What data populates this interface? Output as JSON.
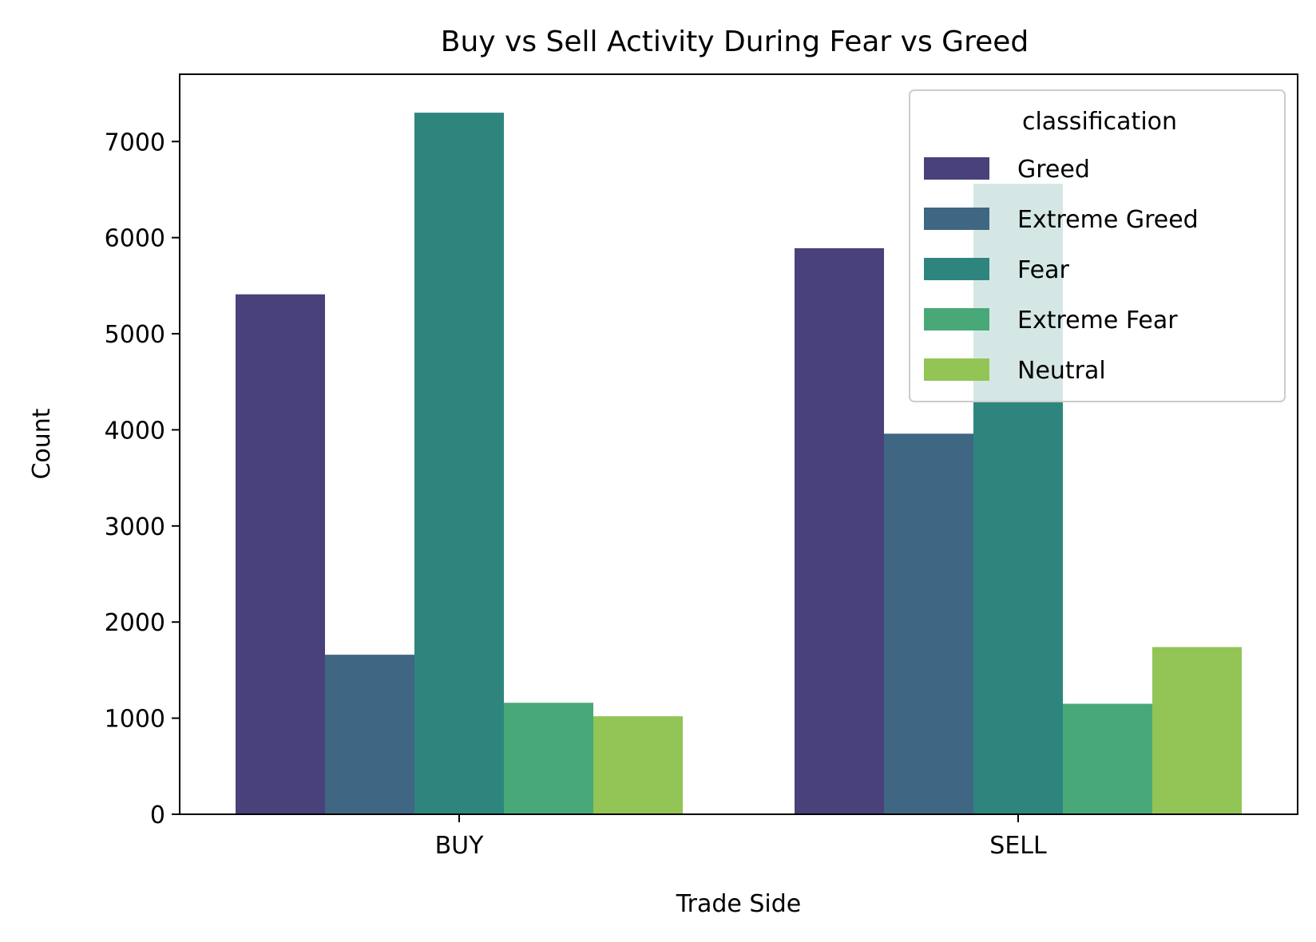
{
  "chart_data": {
    "type": "bar",
    "title": "Buy vs Sell Activity During Fear vs Greed",
    "xlabel": "Trade Side",
    "ylabel": "Count",
    "categories": [
      "BUY",
      "SELL"
    ],
    "ylim": [
      0,
      7700
    ],
    "yticks": [
      0,
      1000,
      2000,
      3000,
      4000,
      5000,
      6000,
      7000
    ],
    "grid": false,
    "legend": {
      "title": "classification",
      "placement": "top-right"
    },
    "series": [
      {
        "name": "Greed",
        "color": "#48417a",
        "values": [
          5410,
          5890
        ]
      },
      {
        "name": "Extreme Greed",
        "color": "#3f6682",
        "values": [
          1660,
          3960
        ]
      },
      {
        "name": "Fear",
        "color": "#2e857e",
        "values": [
          7300,
          6560
        ]
      },
      {
        "name": "Extreme Fear",
        "color": "#48a878",
        "values": [
          1160,
          1150
        ]
      },
      {
        "name": "Neutral",
        "color": "#92c555",
        "values": [
          1020,
          1740
        ]
      }
    ]
  }
}
